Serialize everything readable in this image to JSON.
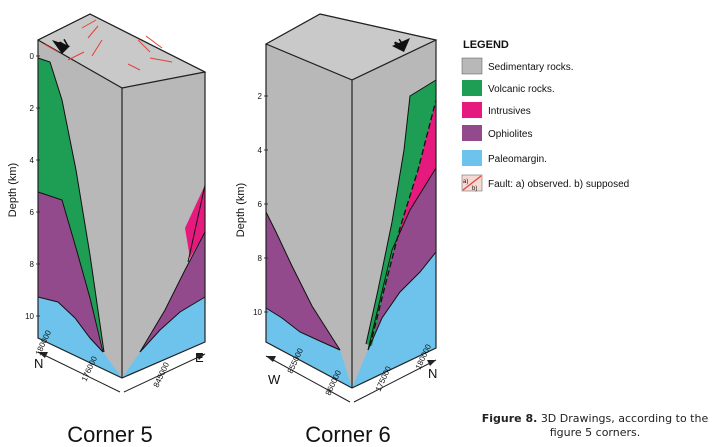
{
  "figure": {
    "caption_label": "Figure 8.",
    "caption_text": "3D Drawings, according to the figure 5 corners."
  },
  "colors": {
    "sedimentary": "#b8b8b8",
    "sedimentary_top": "#c9c9c9",
    "volcanic": "#1e9e55",
    "intrusives": "#e6197e",
    "ophiolites": "#934a8c",
    "paleomargin": "#6ec3ec"
  },
  "legend": {
    "title": "LEGEND",
    "items": [
      {
        "label": "Sedimentary rocks."
      },
      {
        "label": "Volcanic rocks."
      },
      {
        "label": "Intrusives"
      },
      {
        "label": "Ophiolites"
      },
      {
        "label": "Paleomargin."
      },
      {
        "label": "Fault: a) observed. b) supposed",
        "swatch_a": "a)",
        "swatch_b": "b)"
      }
    ]
  },
  "corner5": {
    "title": "Corner 5",
    "depth_label": "Depth (km)",
    "depth_ticks": [
      "0",
      "2",
      "4",
      "6",
      "8",
      "10"
    ],
    "north_arrow": "N",
    "left_face": {
      "direction": "N",
      "ticks": [
        "180000",
        "176000"
      ]
    },
    "right_face": {
      "direction": "E",
      "ticks": [
        "845000"
      ]
    }
  },
  "corner6": {
    "title": "Corner 6",
    "depth_label": "Depth (km)",
    "depth_ticks": [
      "2",
      "4",
      "6",
      "8",
      "10"
    ],
    "north_arrow": "N",
    "left_face": {
      "direction": "W",
      "ticks": [
        "855000",
        "860000"
      ]
    },
    "right_face": {
      "direction": "N",
      "ticks": [
        "175000",
        "180000"
      ]
    }
  }
}
